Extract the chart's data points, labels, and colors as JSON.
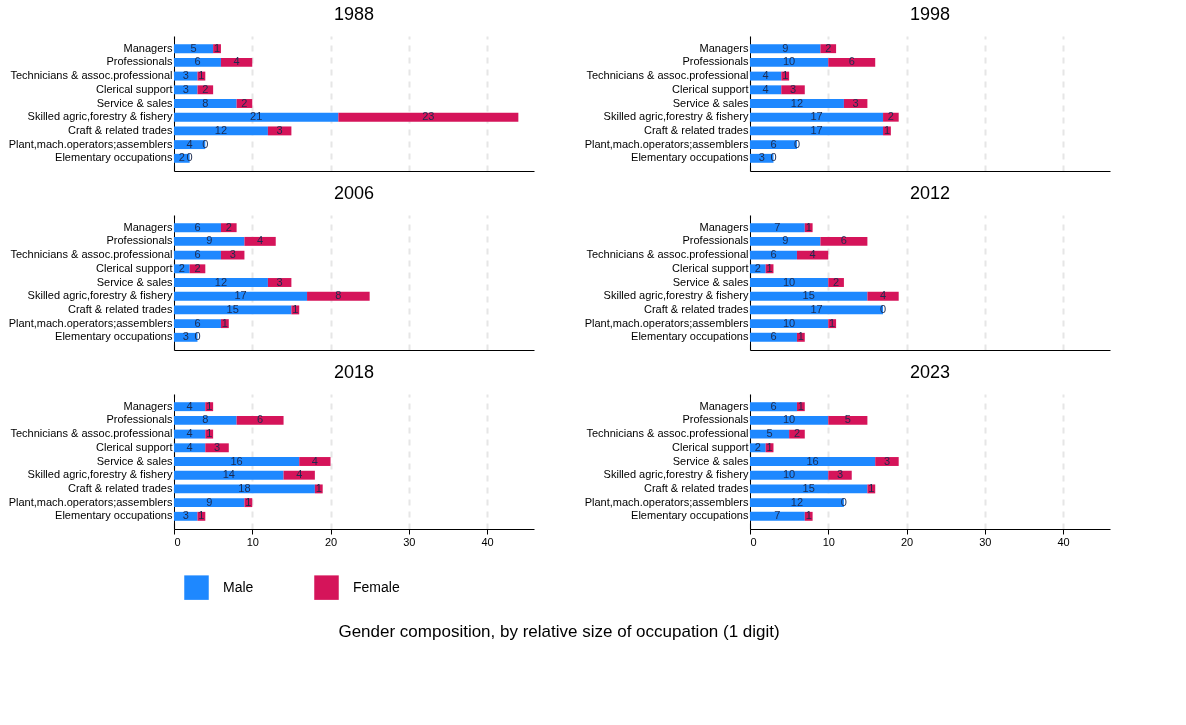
{
  "chart_data": [
    {
      "type": "bar",
      "title": "1988",
      "orientation": "horizontal",
      "stacked": true,
      "data_labels": true,
      "grid": "x",
      "legend": "bottom",
      "tick_labels": "y",
      "xlim": [
        0,
        46
      ],
      "xticks": [
        0,
        10,
        20,
        30,
        40
      ],
      "categories": [
        "Managers",
        "Professionals",
        "Technicians & assoc.professional",
        "Clerical support",
        "Service & sales",
        "Skilled agric,forestry & fishery",
        "Craft & related trades",
        "Plant,mach.operators;assemblers",
        "Elementary occupations"
      ],
      "series": [
        {
          "name": "Male",
          "color": "#1e88ff",
          "values": [
            5,
            6,
            3,
            3,
            8,
            21,
            12,
            4,
            2
          ]
        },
        {
          "name": "Female",
          "color": "#d5145a",
          "values": [
            1,
            4,
            1,
            2,
            2,
            23,
            3,
            0,
            0
          ]
        }
      ]
    },
    {
      "type": "bar",
      "title": "1998",
      "orientation": "horizontal",
      "stacked": true,
      "data_labels": true,
      "grid": "x",
      "legend": "bottom",
      "tick_labels": "y",
      "xlim": [
        0,
        46
      ],
      "xticks": [
        0,
        10,
        20,
        30,
        40
      ],
      "categories": [
        "Managers",
        "Professionals",
        "Technicians & assoc.professional",
        "Clerical support",
        "Service & sales",
        "Skilled agric,forestry & fishery",
        "Craft & related trades",
        "Plant,mach.operators;assemblers",
        "Elementary occupations"
      ],
      "series": [
        {
          "name": "Male",
          "color": "#1e88ff",
          "values": [
            9,
            10,
            4,
            4,
            12,
            17,
            17,
            6,
            3
          ]
        },
        {
          "name": "Female",
          "color": "#d5145a",
          "values": [
            2,
            6,
            1,
            3,
            3,
            2,
            1,
            0,
            0
          ]
        }
      ]
    },
    {
      "type": "bar",
      "title": "2006",
      "orientation": "horizontal",
      "stacked": true,
      "data_labels": true,
      "grid": "x",
      "legend": "bottom",
      "tick_labels": "y",
      "xlim": [
        0,
        46
      ],
      "xticks": [
        0,
        10,
        20,
        30,
        40
      ],
      "categories": [
        "Managers",
        "Professionals",
        "Technicians & assoc.professional",
        "Clerical support",
        "Service & sales",
        "Skilled agric,forestry & fishery",
        "Craft & related trades",
        "Plant,mach.operators;assemblers",
        "Elementary occupations"
      ],
      "series": [
        {
          "name": "Male",
          "color": "#1e88ff",
          "values": [
            6,
            9,
            6,
            2,
            12,
            17,
            15,
            6,
            3
          ]
        },
        {
          "name": "Female",
          "color": "#d5145a",
          "values": [
            2,
            4,
            3,
            2,
            3,
            8,
            1,
            1,
            0
          ]
        }
      ]
    },
    {
      "type": "bar",
      "title": "2012",
      "orientation": "horizontal",
      "stacked": true,
      "data_labels": true,
      "grid": "x",
      "legend": "bottom",
      "tick_labels": "y",
      "xlim": [
        0,
        46
      ],
      "xticks": [
        0,
        10,
        20,
        30,
        40
      ],
      "categories": [
        "Managers",
        "Professionals",
        "Technicians & assoc.professional",
        "Clerical support",
        "Service & sales",
        "Skilled agric,forestry & fishery",
        "Craft & related trades",
        "Plant,mach.operators;assemblers",
        "Elementary occupations"
      ],
      "series": [
        {
          "name": "Male",
          "color": "#1e88ff",
          "values": [
            7,
            9,
            6,
            2,
            10,
            15,
            17,
            10,
            6
          ]
        },
        {
          "name": "Female",
          "color": "#d5145a",
          "values": [
            1,
            6,
            4,
            1,
            2,
            4,
            0,
            1,
            1
          ]
        }
      ]
    },
    {
      "type": "bar",
      "title": "2018",
      "orientation": "horizontal",
      "stacked": true,
      "data_labels": true,
      "grid": "x",
      "legend": "bottom",
      "xlim": [
        0,
        46
      ],
      "xticks": [
        0,
        10,
        20,
        30,
        40
      ],
      "xlabel": "Gender composition, by relative size of occupation (1 digit)",
      "categories": [
        "Managers",
        "Professionals",
        "Technicians & assoc.professional",
        "Clerical support",
        "Service & sales",
        "Skilled agric,forestry & fishery",
        "Craft & related trades",
        "Plant,mach.operators;assemblers",
        "Elementary occupations"
      ],
      "series": [
        {
          "name": "Male",
          "color": "#1e88ff",
          "values": [
            4,
            8,
            4,
            4,
            16,
            14,
            18,
            9,
            3
          ]
        },
        {
          "name": "Female",
          "color": "#d5145a",
          "values": [
            1,
            6,
            1,
            3,
            4,
            4,
            1,
            1,
            1
          ]
        }
      ]
    },
    {
      "type": "bar",
      "title": "2023",
      "orientation": "horizontal",
      "stacked": true,
      "data_labels": true,
      "grid": "x",
      "legend": "bottom",
      "xlim": [
        0,
        46
      ],
      "xticks": [
        0,
        10,
        20,
        30,
        40
      ],
      "categories": [
        "Managers",
        "Professionals",
        "Technicians & assoc.professional",
        "Clerical support",
        "Service & sales",
        "Skilled agric,forestry & fishery",
        "Craft & related trades",
        "Plant,mach.operators;assemblers",
        "Elementary occupations"
      ],
      "series": [
        {
          "name": "Male",
          "color": "#1e88ff",
          "values": [
            6,
            10,
            5,
            2,
            16,
            10,
            15,
            12,
            7
          ]
        },
        {
          "name": "Female",
          "color": "#d5145a",
          "values": [
            1,
            5,
            2,
            1,
            3,
            3,
            1,
            0,
            1
          ]
        }
      ]
    }
  ]
}
